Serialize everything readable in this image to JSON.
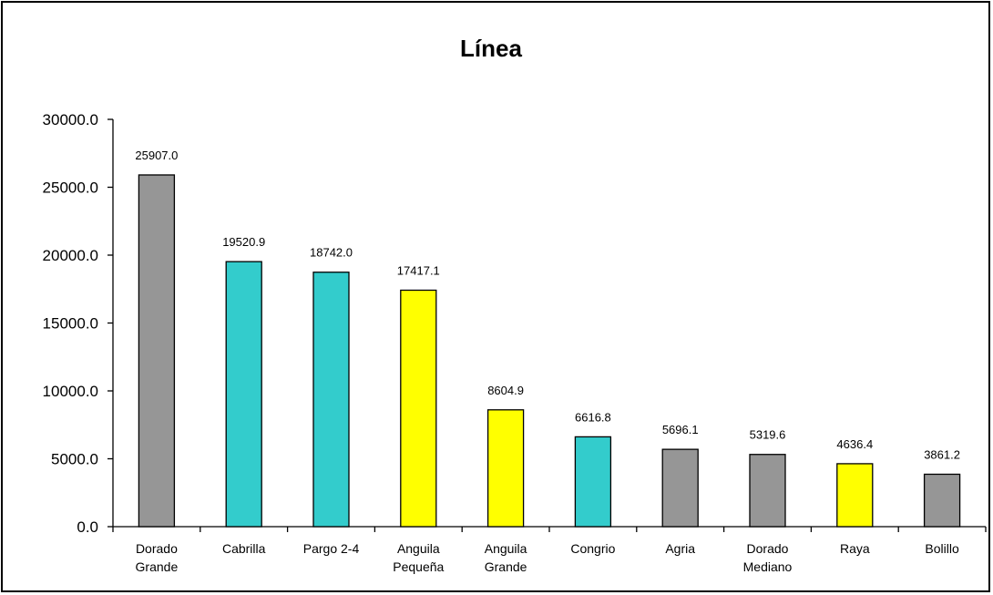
{
  "chart_data": {
    "type": "bar",
    "title": "Línea",
    "xlabel": "",
    "ylabel": "",
    "ylim": [
      0,
      30000
    ],
    "yticks": [
      0,
      5000,
      10000,
      15000,
      20000,
      25000,
      30000
    ],
    "ytick_labels": [
      "0.0",
      "5000.0",
      "10000.0",
      "15000.0",
      "20000.0",
      "25000.0",
      "30000.0"
    ],
    "grid": false,
    "legend": "none",
    "categories": [
      [
        "Dorado",
        "Grande"
      ],
      [
        "Cabrilla"
      ],
      [
        "Pargo 2-4"
      ],
      [
        "Anguila",
        "Pequeña"
      ],
      [
        "Anguila",
        "Grande"
      ],
      [
        "Congrio"
      ],
      [
        "Agria"
      ],
      [
        "Dorado",
        "Mediano"
      ],
      [
        "Raya"
      ],
      [
        "Bolillo"
      ]
    ],
    "values": [
      25907.0,
      19520.9,
      18742.0,
      17417.1,
      8604.9,
      6616.8,
      5696.1,
      5319.6,
      4636.4,
      3861.2
    ],
    "value_labels": [
      "25907.0",
      "19520.9",
      "18742.0",
      "17417.1",
      "8604.9",
      "6616.8",
      "5696.1",
      "5319.6",
      "4636.4",
      "3861.2"
    ],
    "bar_colors": [
      "#969696",
      "#33cccc",
      "#33cccc",
      "#ffff00",
      "#ffff00",
      "#33cccc",
      "#969696",
      "#969696",
      "#ffff00",
      "#969696"
    ],
    "bar_edge_color": "#000000",
    "axis_color": "#000000"
  }
}
